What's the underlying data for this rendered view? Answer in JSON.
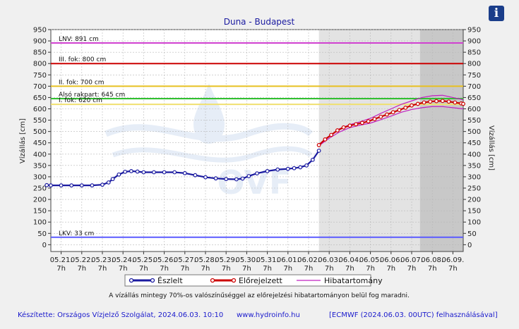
{
  "info_icon": "info-icon",
  "info_glyph": "i",
  "watermark_text": "OVF",
  "chart_data": {
    "type": "line",
    "title": "Duna - Budapest",
    "ylabel": "Vízállás [cm]",
    "ylabel_right": "Vízállás [cm]",
    "ylim": [
      -30,
      950
    ],
    "yticks": [
      0,
      50,
      100,
      150,
      200,
      250,
      300,
      350,
      400,
      450,
      500,
      550,
      600,
      650,
      700,
      750,
      800,
      850,
      900,
      950
    ],
    "xlim": [
      0,
      20
    ],
    "x_tick_dates": [
      "05.21.",
      "05.22.",
      "05.23.",
      "05.24.",
      "05.25.",
      "05.26.",
      "05.27.",
      "05.28.",
      "05.29.",
      "05.30.",
      "05.31.",
      "06.01.",
      "06.02.",
      "06.03.",
      "06.04.",
      "06.05.",
      "06.06.",
      "06.07.",
      "06.08.",
      "06.09."
    ],
    "x_tick_hour": "7h",
    "grid": true,
    "forecast_region_start": 13.0,
    "forecast_region_dark_start": 17.9,
    "reference_lines": [
      {
        "label": "LNV: 891 cm",
        "value": 891,
        "color": "#d040d0"
      },
      {
        "label": "III. fok: 800 cm",
        "value": 800,
        "color": "#cc0000"
      },
      {
        "label": "II. fok: 700 cm",
        "value": 700,
        "color": "#e8c020"
      },
      {
        "label": "Alsó rakpart: 645 cm",
        "value": 645,
        "color": "#30c030"
      },
      {
        "label": "I. fok: 620 cm",
        "value": 620,
        "color": "#f0e070"
      },
      {
        "label": "LKV: 33 cm",
        "value": 33,
        "color": "#5a5aff"
      }
    ],
    "series": [
      {
        "name": "Észlelt",
        "color": "#1a1aa0",
        "x": [
          -0.2,
          0,
          0.5,
          1,
          1.5,
          2,
          2.5,
          2.8,
          3,
          3.3,
          3.6,
          3.9,
          4.2,
          4.5,
          5,
          5.5,
          6,
          6.5,
          7,
          7.5,
          8,
          8.5,
          9,
          9.3,
          9.6,
          10,
          10.5,
          11,
          11.5,
          11.8,
          12.1,
          12.4,
          12.7,
          13
        ],
        "y": [
          263,
          262,
          262,
          262,
          262,
          262,
          265,
          275,
          290,
          310,
          322,
          325,
          323,
          320,
          320,
          320,
          320,
          316,
          307,
          298,
          293,
          290,
          289,
          292,
          303,
          315,
          325,
          332,
          335,
          338,
          342,
          350,
          375,
          415
        ]
      },
      {
        "name": "Előrejelzett",
        "color": "#cc0000",
        "x": [
          13,
          13.3,
          13.6,
          13.9,
          14.2,
          14.5,
          14.8,
          15.1,
          15.4,
          15.7,
          16,
          16.3,
          16.6,
          16.9,
          17.2,
          17.5,
          17.8,
          18.1,
          18.4,
          18.7,
          19,
          19.3,
          19.6,
          19.9,
          20
        ],
        "y": [
          440,
          465,
          485,
          505,
          518,
          526,
          532,
          538,
          545,
          555,
          565,
          575,
          585,
          595,
          605,
          615,
          622,
          628,
          632,
          634,
          635,
          632,
          628,
          624,
          622
        ]
      },
      {
        "name": "Hibatartomány",
        "color": "#c020c0",
        "x": [
          13,
          13.5,
          14,
          14.5,
          15,
          15.5,
          16,
          16.5,
          17,
          17.5,
          18,
          18.5,
          19,
          19.5,
          20
        ],
        "upper": [
          443,
          478,
          512,
          530,
          543,
          558,
          580,
          600,
          620,
          635,
          650,
          658,
          660,
          650,
          640
        ],
        "lower": [
          437,
          470,
          498,
          517,
          528,
          537,
          552,
          568,
          585,
          597,
          605,
          610,
          610,
          605,
          600
        ]
      }
    ],
    "legend": [
      "Észlelt",
      "Előrejelzett",
      "Hibatartomány"
    ],
    "legend_position": "bottom",
    "note": "A vízállás mintegy 70%-os valószínűséggel az előrejelzési hibatartományon belül fog maradni."
  },
  "footer": {
    "credit": "Készítette: Országos Vízjelző Szolgálat, 2024.06.03. 10:10",
    "website": "www.hydroinfo.hu",
    "source": "[ECMWF (2024.06.03. 00UTC) felhasználásával]"
  }
}
